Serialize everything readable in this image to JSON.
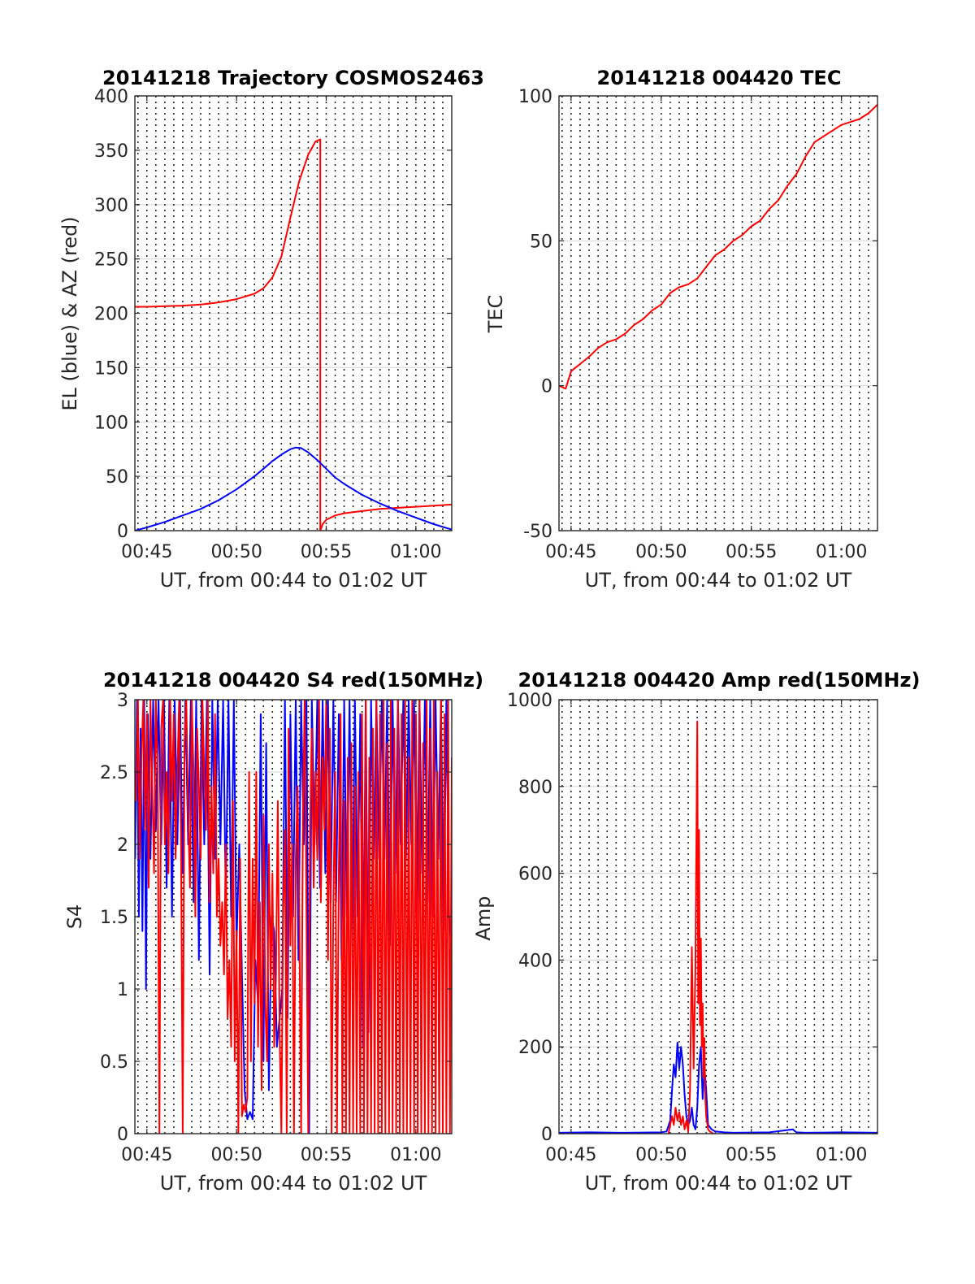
{
  "figure": {
    "background": "#ffffff",
    "red": "#ff0000",
    "blue": "#0000ff"
  },
  "chart_data": [
    {
      "id": "p1",
      "type": "line",
      "title": "20141218 Trajectory COSMOS2463",
      "xlabel": "UT, from 00:44 to 01:02 UT",
      "ylabel": "EL (blue) & AZ (red)",
      "xlim": [
        44.33,
        62.0
      ],
      "ylim": [
        0,
        400
      ],
      "x_ticks": [
        45,
        50,
        55,
        60
      ],
      "x_tick_labels": [
        "00:45",
        "00:50",
        "00:55",
        "01:00"
      ],
      "y_ticks": [
        0,
        50,
        100,
        150,
        200,
        250,
        300,
        350,
        400
      ],
      "y_tick_labels": [
        "0",
        "50",
        "100",
        "150",
        "200",
        "250",
        "300",
        "350",
        "400"
      ],
      "x_minor_grid": 0.5,
      "series": [
        {
          "color": "#ff0000",
          "x": [
            44.33,
            45,
            46,
            47,
            48,
            49,
            50,
            51,
            51.5,
            52,
            52.5,
            53,
            53.5,
            54,
            54.4,
            54.67,
            54.67,
            54.8,
            55,
            55.5,
            56,
            57,
            58,
            59,
            60,
            61,
            62
          ],
          "y": [
            206,
            206,
            206.5,
            207,
            208,
            210,
            213,
            218,
            223,
            233,
            252,
            288,
            322,
            346,
            358,
            360,
            0,
            6,
            10,
            14,
            16,
            18,
            20,
            21,
            22,
            23,
            24
          ]
        },
        {
          "color": "#0000ff",
          "x": [
            44.33,
            45,
            46,
            47,
            48,
            49,
            50,
            51,
            51.5,
            52,
            52.5,
            53,
            53.3,
            53.6,
            54,
            54.5,
            55,
            55.5,
            56,
            57,
            58,
            59,
            60,
            61,
            62
          ],
          "y": [
            0,
            3,
            8,
            14,
            20,
            28,
            38,
            50,
            57,
            64,
            70,
            75,
            76.5,
            76,
            72,
            65,
            57,
            49,
            43,
            33,
            25,
            18,
            12,
            6,
            1
          ]
        }
      ]
    },
    {
      "id": "p2",
      "type": "line",
      "title": "20141218 004420 TEC",
      "xlabel": "UT, from 00:44 to 01:02 UT",
      "ylabel": "TEC",
      "xlim": [
        44.33,
        62.0
      ],
      "ylim": [
        -50,
        100
      ],
      "x_ticks": [
        45,
        50,
        55,
        60
      ],
      "x_tick_labels": [
        "00:45",
        "00:50",
        "00:55",
        "01:00"
      ],
      "y_ticks": [
        -50,
        0,
        50,
        100
      ],
      "y_tick_labels": [
        "-50",
        "0",
        "50",
        "100"
      ],
      "x_minor_grid": 0.5,
      "series": [
        {
          "color": "#ff0000",
          "x": [
            44.33,
            44.7,
            45,
            45.5,
            46,
            46.5,
            47,
            47.5,
            48,
            48.5,
            49,
            49.5,
            50,
            50.5,
            51,
            51.5,
            52,
            52.5,
            53,
            53.5,
            54,
            54.5,
            55,
            55.5,
            56,
            56.5,
            57,
            57.5,
            58,
            58.5,
            59,
            59.5,
            60,
            60.5,
            61,
            61.5,
            62
          ],
          "y": [
            0,
            -1,
            5,
            7.5,
            10,
            13,
            15,
            16,
            18,
            21,
            23,
            26,
            28,
            32,
            34,
            35,
            37,
            41,
            45,
            47,
            50,
            52,
            55,
            57,
            61,
            64,
            69,
            73,
            79,
            84,
            86,
            88,
            90,
            91,
            92,
            94,
            97
          ]
        }
      ]
    },
    {
      "id": "p3",
      "type": "line",
      "title": "20141218 004420 S4 red(150MHz)",
      "xlabel": "UT, from 00:44 to 01:02 UT",
      "ylabel": "S4",
      "xlim": [
        44.33,
        62.0
      ],
      "ylim": [
        0,
        3
      ],
      "x_ticks": [
        45,
        50,
        55,
        60
      ],
      "x_tick_labels": [
        "00:45",
        "00:50",
        "00:55",
        "01:00"
      ],
      "y_ticks": [
        0,
        0.5,
        1,
        1.5,
        2,
        2.5,
        3
      ],
      "y_tick_labels": [
        "0",
        "0.5",
        "1",
        "1.5",
        "2",
        "2.5",
        "3"
      ],
      "x_minor_grid": 0.5,
      "series": [
        {
          "color": "#0000ff",
          "x": [
            44.35,
            44.45,
            44.55,
            44.65,
            44.75,
            44.85,
            44.95,
            45.05,
            45.2,
            45.35,
            45.5,
            45.65,
            45.8,
            45.95,
            46.1,
            46.25,
            46.4,
            46.55,
            46.7,
            46.85,
            47.0,
            47.15,
            47.3,
            47.45,
            47.6,
            47.75,
            47.9,
            48.05,
            48.2,
            48.35,
            48.5,
            48.65,
            48.8,
            48.95,
            49.1,
            49.25,
            49.4,
            49.55,
            49.7,
            49.85,
            50.0,
            50.15,
            50.3,
            50.45,
            50.6,
            50.75,
            50.9,
            51.05,
            51.2,
            51.35,
            51.5,
            51.65,
            51.8,
            51.95,
            52.1,
            52.25,
            52.4,
            52.55,
            52.7,
            52.85,
            53.0,
            53.15,
            53.3,
            53.45,
            53.6,
            53.75,
            53.9,
            54.05,
            54.2,
            54.35,
            54.5,
            54.65,
            54.8,
            54.95,
            55.1,
            55.25,
            55.4,
            55.55,
            55.7,
            55.85,
            56.0,
            56.15,
            56.3,
            56.45,
            56.6,
            56.75,
            56.9,
            57.05,
            57.2,
            57.35,
            57.5,
            57.65,
            57.8,
            57.95,
            58.1,
            58.25,
            58.4,
            58.55,
            58.7,
            58.85,
            59.0,
            59.15,
            59.3,
            59.45,
            59.6,
            59.75,
            59.9,
            60.05,
            60.2,
            60.35,
            60.5,
            60.65,
            60.8,
            60.95,
            61.1,
            61.25,
            61.4,
            61.55,
            61.7,
            61.85,
            62.0
          ],
          "y": [
            1.9,
            3.0,
            1.5,
            2.8,
            1.4,
            3.0,
            1.0,
            2.9,
            1.9,
            3.0,
            2.1,
            3.0,
            2.0,
            3.0,
            1.7,
            3.0,
            1.5,
            3.0,
            2.0,
            3.0,
            1.8,
            3.0,
            2.0,
            3.0,
            1.6,
            3.0,
            1.2,
            3.0,
            2.0,
            3.0,
            1.1,
            3.0,
            1.9,
            3.0,
            2.0,
            3.0,
            1.6,
            3.0,
            1.5,
            3.0,
            1.3,
            2.0,
            1.1,
            0.3,
            0.1,
            0.15,
            0.1,
            1.2,
            0.9,
            2.9,
            0.5,
            2.7,
            0.3,
            1.5,
            1.4,
            0.6,
            0.8,
            1.0,
            3.0,
            0.8,
            2.9,
            1.5,
            3.0,
            1.2,
            3.0,
            2.0,
            3.0,
            0.0,
            3.0,
            2.0,
            3.0,
            1.7,
            3.0,
            1.8,
            3.0,
            1.6,
            3.0,
            1.6,
            2.9,
            1.2,
            3.0,
            1.5,
            3.0,
            1.3,
            3.0,
            1.5,
            2.9,
            0.6,
            3.0,
            0.7,
            3.0,
            1.9,
            3.0,
            1.9,
            3.0,
            1.9,
            3.0,
            1.3,
            3.0,
            1.8,
            3.0,
            2.0,
            3.0,
            1.9,
            3.0,
            2.0,
            3.0,
            1.5,
            3.0,
            1.8,
            3.0,
            1.6,
            3.0,
            1.5,
            3.0,
            1.9,
            3.0,
            1.4,
            3.0,
            1.5,
            1.3
          ]
        },
        {
          "color": "#ff0000",
          "x": [
            44.4,
            44.5,
            44.6,
            44.7,
            44.8,
            44.9,
            45.0,
            45.1,
            45.2,
            45.3,
            45.4,
            45.5,
            45.6,
            45.7,
            45.8,
            45.9,
            46.0,
            46.1,
            46.2,
            46.3,
            46.4,
            46.5,
            46.6,
            46.7,
            46.8,
            46.9,
            47.0,
            47.1,
            47.2,
            47.3,
            47.4,
            47.5,
            47.6,
            47.7,
            47.8,
            47.9,
            48.0,
            48.1,
            48.2,
            48.3,
            48.4,
            48.5,
            48.6,
            48.7,
            48.8,
            48.9,
            49.0,
            49.1,
            49.2,
            49.3,
            49.4,
            49.5,
            49.6,
            49.7,
            49.8,
            49.9,
            50.0,
            50.1,
            50.2,
            50.3,
            50.4,
            50.5,
            50.6,
            50.7,
            50.8,
            50.9,
            51.0,
            51.1,
            51.2,
            51.3,
            51.4,
            51.5,
            51.6,
            51.7,
            51.8,
            51.9,
            52.0,
            52.1,
            52.2,
            52.3,
            52.4,
            52.5,
            52.6,
            52.7,
            52.8,
            52.9,
            53.0,
            53.1,
            53.2,
            53.3,
            53.4,
            53.5,
            53.6,
            53.7,
            53.8,
            53.9,
            54.0,
            54.1,
            54.2,
            54.3,
            54.4,
            54.5,
            54.6,
            54.7,
            54.8,
            54.9,
            55.0,
            55.1,
            55.2,
            55.3,
            55.4,
            55.5,
            55.6,
            55.7,
            55.8,
            55.9,
            56.0,
            56.1,
            56.2,
            56.3,
            56.4,
            56.5,
            56.6,
            56.7,
            56.8,
            56.9,
            57.0,
            57.1,
            57.2,
            57.3,
            57.4,
            57.5,
            57.6,
            57.7,
            57.8,
            57.9,
            58.0,
            58.1,
            58.2,
            58.3,
            58.4,
            58.5,
            58.6,
            58.7,
            58.8,
            58.9,
            59.0,
            59.1,
            59.2,
            59.3,
            59.4,
            59.5,
            59.6,
            59.7,
            59.8,
            59.9,
            60.0,
            60.1,
            60.2,
            60.3,
            60.4,
            60.5,
            60.6,
            60.7,
            60.8,
            60.9,
            61.0,
            61.1,
            61.2,
            61.3,
            61.4,
            61.5,
            61.6,
            61.7,
            61.8,
            61.9,
            62.0
          ],
          "y": [
            2.3,
            3.0,
            1.9,
            2.6,
            3.0,
            2.1,
            2.9,
            1.7,
            3.0,
            2.4,
            1.8,
            3.0,
            2.5,
            0.0,
            2.8,
            3.0,
            2.0,
            2.5,
            1.8,
            3.0,
            2.3,
            2.9,
            1.9,
            2.5,
            3.0,
            2.1,
            0.0,
            2.7,
            3.0,
            2.2,
            1.7,
            3.0,
            2.5,
            1.5,
            2.8,
            2.4,
            1.9,
            3.0,
            2.5,
            2.1,
            3.0,
            1.6,
            2.4,
            1.8,
            2.9,
            1.5,
            1.9,
            1.3,
            1.6,
            1.1,
            2.0,
            0.8,
            1.2,
            0.6,
            2.3,
            0.5,
            1.4,
            0.0,
            1.9,
            0.12,
            0.2,
            0.15,
            0.25,
            2.5,
            0.5,
            1.9,
            0.9,
            2.5,
            0.6,
            1.6,
            0.3,
            2.2,
            0.9,
            0.5,
            2.0,
            1.0,
            1.8,
            0.6,
            1.1,
            2.3,
            0.7,
            0.0,
            1.5,
            2.1,
            0.0,
            2.8,
            1.3,
            2.0,
            0.0,
            1.9,
            2.4,
            1.5,
            0.0,
            2.2,
            3.0,
            1.5,
            0.0,
            2.1,
            2.8,
            1.7,
            2.5,
            1.9,
            3.0,
            1.6,
            2.6,
            2.1,
            3.0,
            1.2,
            2.8,
            0.0,
            1.6,
            2.5,
            0.0,
            1.8,
            2.9,
            0.0,
            2.3,
            0.0,
            2.6,
            0.0,
            2.7,
            0.0,
            2.4,
            0.0,
            2.5,
            0.0,
            2.9,
            0.0,
            3.0,
            0.0,
            2.6,
            0.0,
            2.8,
            0.0,
            3.0,
            0.0,
            2.9,
            0.0,
            3.0,
            0.0,
            2.7,
            0.0,
            3.0,
            0.0,
            2.8,
            0.0,
            3.0,
            0.0,
            2.9,
            0.0,
            3.0,
            0.0,
            2.6,
            0.0,
            3.0,
            0.0,
            2.9,
            0.0,
            3.0,
            0.0,
            2.7,
            0.0,
            3.0,
            0.0,
            2.8,
            0.0,
            3.0,
            0.0,
            2.5,
            0.0,
            3.0,
            0.0,
            2.9,
            0.0,
            3.0,
            0.0,
            2.6
          ]
        }
      ]
    },
    {
      "id": "p4",
      "type": "line",
      "title": "20141218 004420 Amp red(150MHz)",
      "xlabel": "UT, from 00:44 to 01:02 UT",
      "ylabel": "Amp",
      "xlim": [
        44.33,
        62.0
      ],
      "ylim": [
        0,
        1000
      ],
      "x_ticks": [
        45,
        50,
        55,
        60
      ],
      "x_tick_labels": [
        "00:45",
        "00:50",
        "00:55",
        "01:00"
      ],
      "y_ticks": [
        0,
        200,
        400,
        600,
        800,
        1000
      ],
      "y_tick_labels": [
        "0",
        "200",
        "400",
        "600",
        "800",
        "1000"
      ],
      "x_minor_grid": 0.5,
      "series": [
        {
          "color": "#0000ff",
          "x": [
            44.33,
            46,
            48,
            50,
            50.3,
            50.5,
            50.6,
            50.7,
            50.8,
            50.9,
            51.0,
            51.1,
            51.2,
            51.3,
            51.4,
            51.5,
            51.6,
            51.7,
            51.8,
            51.9,
            52.0,
            52.1,
            52.2,
            52.3,
            52.4,
            52.5,
            52.6,
            52.8,
            53.0,
            53.5,
            54,
            56,
            57.3,
            57.5,
            58,
            60,
            62
          ],
          "y": [
            2,
            3,
            2,
            3,
            5,
            30,
            100,
            160,
            130,
            210,
            150,
            200,
            160,
            90,
            40,
            20,
            30,
            60,
            20,
            10,
            60,
            160,
            200,
            80,
            150,
            100,
            20,
            10,
            5,
            3,
            2,
            3,
            10,
            3,
            2,
            3,
            2
          ]
        },
        {
          "color": "#ff0000",
          "x": [
            50.4,
            50.6,
            50.7,
            50.8,
            50.9,
            51.0,
            51.1,
            51.2,
            51.3,
            51.4,
            51.5,
            51.6,
            51.7,
            51.8,
            51.9,
            52.0,
            52.05,
            52.1,
            52.15,
            52.2,
            52.25,
            52.3,
            52.35,
            52.4,
            52.45,
            52.5,
            52.6,
            52.7,
            52.8,
            52.9,
            53.0
          ],
          "y": [
            0,
            40,
            20,
            60,
            30,
            50,
            20,
            40,
            10,
            30,
            5,
            100,
            430,
            150,
            380,
            950,
            300,
            700,
            250,
            450,
            200,
            300,
            130,
            220,
            80,
            40,
            10,
            5,
            2,
            0,
            0
          ]
        }
      ]
    }
  ]
}
